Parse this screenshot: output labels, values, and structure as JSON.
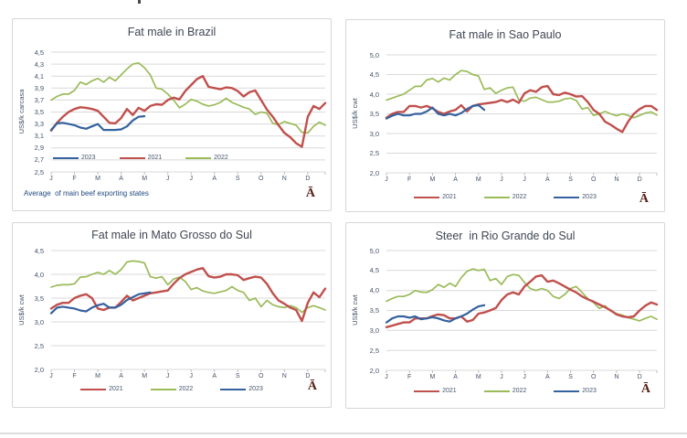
{
  "misc": {
    "glyph": "Ā"
  },
  "colors": {
    "red": "#c0504d",
    "green": "#9bbb59",
    "blue": "#35619e",
    "grid": "#d9d9d9",
    "axis_tick": "#bfbfbf"
  },
  "chart_data": [
    {
      "type": "line",
      "title": "Fat male in Brazil",
      "ylabel": "US$/k carcasa",
      "ylim": [
        2.5,
        4.5
      ],
      "ystep": 0.2,
      "grid": true,
      "months": [
        "J",
        "F",
        "M",
        "A",
        "M",
        "J",
        "J",
        "A",
        "S",
        "O",
        "N",
        "D"
      ],
      "legend_position": "inside-bottom-left",
      "legend_order": [
        "2023",
        "2021",
        "2022"
      ],
      "note": "Average  of main beef exporting states",
      "series": [
        {
          "name": "2021",
          "color": "red",
          "values": [
            3.19,
            3.32,
            3.42,
            3.5,
            3.55,
            3.58,
            3.57,
            3.55,
            3.52,
            3.42,
            3.32,
            3.31,
            3.4,
            3.55,
            3.45,
            3.57,
            3.52,
            3.6,
            3.63,
            3.62,
            3.7,
            3.74,
            3.71,
            3.85,
            3.95,
            4.05,
            4.1,
            3.92,
            3.9,
            3.88,
            3.91,
            3.9,
            3.85,
            3.76,
            3.83,
            3.86,
            3.7,
            3.54,
            3.42,
            3.28,
            3.15,
            3.08,
            2.98,
            2.92,
            3.42,
            3.6,
            3.55,
            3.65
          ]
        },
        {
          "name": "2022",
          "color": "green",
          "values": [
            3.7,
            3.76,
            3.8,
            3.8,
            3.86,
            4.0,
            3.96,
            4.02,
            4.06,
            4.0,
            4.08,
            4.02,
            4.12,
            4.22,
            4.3,
            4.32,
            4.24,
            4.12,
            3.9,
            3.88,
            3.8,
            3.7,
            3.57,
            3.63,
            3.71,
            3.68,
            3.63,
            3.6,
            3.62,
            3.66,
            3.73,
            3.66,
            3.62,
            3.58,
            3.55,
            3.46,
            3.5,
            3.48,
            3.31,
            3.29,
            3.34,
            3.31,
            3.28,
            3.16,
            3.15,
            3.26,
            3.33,
            3.28
          ]
        },
        {
          "name": "2023",
          "color": "blue",
          "values": [
            3.2,
            3.31,
            3.32,
            3.3,
            3.28,
            3.24,
            3.22,
            3.26,
            3.3,
            3.2,
            3.2,
            3.2,
            3.21,
            3.26,
            3.36,
            3.42,
            3.43
          ]
        }
      ]
    },
    {
      "type": "line",
      "title": "Fat male in Sao Paulo",
      "ylabel": "US$/k cwt",
      "ylim": [
        2.0,
        5.0
      ],
      "ystep": 0.5,
      "grid": true,
      "months": [
        "J",
        "F",
        "M",
        "A",
        "M",
        "J",
        "J",
        "A",
        "S",
        "O",
        "N",
        "D"
      ],
      "legend_position": "below-center",
      "legend_order": [
        "2021",
        "2022",
        "2023"
      ],
      "note": "",
      "series": [
        {
          "name": "2021",
          "color": "red",
          "values": [
            3.4,
            3.5,
            3.55,
            3.55,
            3.7,
            3.7,
            3.66,
            3.7,
            3.64,
            3.55,
            3.5,
            3.56,
            3.6,
            3.72,
            3.56,
            3.7,
            3.74,
            3.76,
            3.78,
            3.8,
            3.85,
            3.8,
            3.86,
            3.78,
            4.02,
            4.1,
            4.06,
            4.18,
            4.21,
            4.0,
            3.98,
            4.04,
            4.0,
            3.94,
            3.95,
            3.8,
            3.6,
            3.5,
            3.3,
            3.22,
            3.12,
            3.04,
            3.3,
            3.5,
            3.62,
            3.7,
            3.7,
            3.6
          ]
        },
        {
          "name": "2022",
          "color": "green",
          "values": [
            3.85,
            3.9,
            3.95,
            4.0,
            4.1,
            4.2,
            4.2,
            4.36,
            4.4,
            4.31,
            4.41,
            4.36,
            4.5,
            4.6,
            4.58,
            4.5,
            4.46,
            4.12,
            4.16,
            4.02,
            4.1,
            4.16,
            4.18,
            3.85,
            3.82,
            3.9,
            3.92,
            3.86,
            3.8,
            3.8,
            3.82,
            3.88,
            3.9,
            3.84,
            3.62,
            3.66,
            3.46,
            3.5,
            3.56,
            3.5,
            3.45,
            3.5,
            3.46,
            3.4,
            3.46,
            3.52,
            3.55,
            3.47
          ]
        },
        {
          "name": "2023",
          "color": "blue",
          "values": [
            3.38,
            3.45,
            3.5,
            3.46,
            3.46,
            3.5,
            3.5,
            3.56,
            3.66,
            3.5,
            3.46,
            3.5,
            3.46,
            3.52,
            3.62,
            3.7,
            3.72,
            3.6
          ]
        }
      ]
    },
    {
      "type": "line",
      "title": "Fat male in Mato Grosso do Sul",
      "ylabel": "US$/k cwt",
      "ylim": [
        2.0,
        4.5
      ],
      "ystep": 0.5,
      "grid": true,
      "months": [
        "J",
        "F",
        "M",
        "A",
        "M",
        "J",
        "J",
        "A",
        "S",
        "O",
        "N",
        "D"
      ],
      "legend_position": "below-center",
      "legend_order": [
        "2021",
        "2022",
        "2023"
      ],
      "note": "",
      "series": [
        {
          "name": "2021",
          "color": "red",
          "values": [
            3.28,
            3.36,
            3.4,
            3.4,
            3.5,
            3.55,
            3.58,
            3.5,
            3.28,
            3.25,
            3.3,
            3.3,
            3.42,
            3.55,
            3.45,
            3.5,
            3.55,
            3.6,
            3.62,
            3.64,
            3.66,
            3.8,
            3.92,
            4.0,
            4.05,
            4.1,
            4.13,
            3.96,
            3.93,
            3.95,
            4.0,
            4.0,
            3.98,
            3.88,
            3.92,
            3.95,
            3.93,
            3.8,
            3.6,
            3.45,
            3.38,
            3.3,
            3.25,
            3.02,
            3.4,
            3.62,
            3.52,
            3.7
          ]
        },
        {
          "name": "2022",
          "color": "green",
          "values": [
            3.73,
            3.77,
            3.78,
            3.78,
            3.8,
            3.94,
            3.95,
            4.0,
            4.04,
            4.0,
            4.08,
            4.0,
            4.1,
            4.26,
            4.28,
            4.27,
            4.24,
            3.95,
            3.92,
            3.95,
            3.78,
            3.9,
            3.94,
            3.85,
            3.68,
            3.72,
            3.65,
            3.62,
            3.6,
            3.63,
            3.66,
            3.74,
            3.66,
            3.62,
            3.45,
            3.5,
            3.32,
            3.45,
            3.36,
            3.32,
            3.3,
            3.34,
            3.3,
            3.2,
            3.3,
            3.34,
            3.3,
            3.25
          ]
        },
        {
          "name": "2023",
          "color": "blue",
          "values": [
            3.18,
            3.3,
            3.32,
            3.3,
            3.28,
            3.24,
            3.22,
            3.3,
            3.35,
            3.38,
            3.3,
            3.3,
            3.36,
            3.46,
            3.52,
            3.58,
            3.6,
            3.62
          ]
        }
      ]
    },
    {
      "type": "line",
      "title": "Steer  in Rio Grande do Sul",
      "ylabel": "US$/k cwt",
      "ylim": [
        2.0,
        5.0
      ],
      "ystep": 0.5,
      "grid": true,
      "months": [
        "J",
        "F",
        "M",
        "A",
        "M",
        "J",
        "J",
        "A",
        "S",
        "O",
        "N",
        "D"
      ],
      "legend_position": "below-center",
      "legend_order": [
        "2021",
        "2022",
        "2023"
      ],
      "note": "",
      "series": [
        {
          "name": "2021",
          "color": "red",
          "values": [
            3.08,
            3.12,
            3.16,
            3.2,
            3.2,
            3.3,
            3.3,
            3.3,
            3.36,
            3.4,
            3.38,
            3.3,
            3.3,
            3.35,
            3.22,
            3.26,
            3.42,
            3.45,
            3.5,
            3.56,
            3.76,
            3.9,
            3.95,
            3.9,
            4.1,
            4.22,
            4.35,
            4.38,
            4.22,
            4.25,
            4.18,
            4.1,
            4.02,
            3.95,
            3.85,
            3.78,
            3.72,
            3.65,
            3.58,
            3.5,
            3.4,
            3.35,
            3.33,
            3.35,
            3.5,
            3.62,
            3.7,
            3.65
          ]
        },
        {
          "name": "2022",
          "color": "green",
          "values": [
            3.73,
            3.8,
            3.85,
            3.85,
            3.9,
            4.0,
            3.96,
            3.95,
            4.02,
            4.15,
            4.08,
            4.18,
            4.1,
            4.32,
            4.48,
            4.54,
            4.5,
            4.53,
            4.25,
            4.3,
            4.15,
            4.35,
            4.4,
            4.38,
            4.2,
            4.05,
            4.0,
            4.05,
            4.0,
            3.85,
            3.8,
            3.9,
            4.05,
            4.1,
            3.95,
            3.8,
            3.7,
            3.55,
            3.62,
            3.48,
            3.42,
            3.38,
            3.32,
            3.28,
            3.24,
            3.3,
            3.35,
            3.28
          ]
        },
        {
          "name": "2023",
          "color": "blue",
          "values": [
            3.2,
            3.3,
            3.35,
            3.35,
            3.32,
            3.35,
            3.28,
            3.3,
            3.33,
            3.3,
            3.25,
            3.22,
            3.3,
            3.35,
            3.42,
            3.52,
            3.6,
            3.63
          ]
        }
      ]
    }
  ]
}
